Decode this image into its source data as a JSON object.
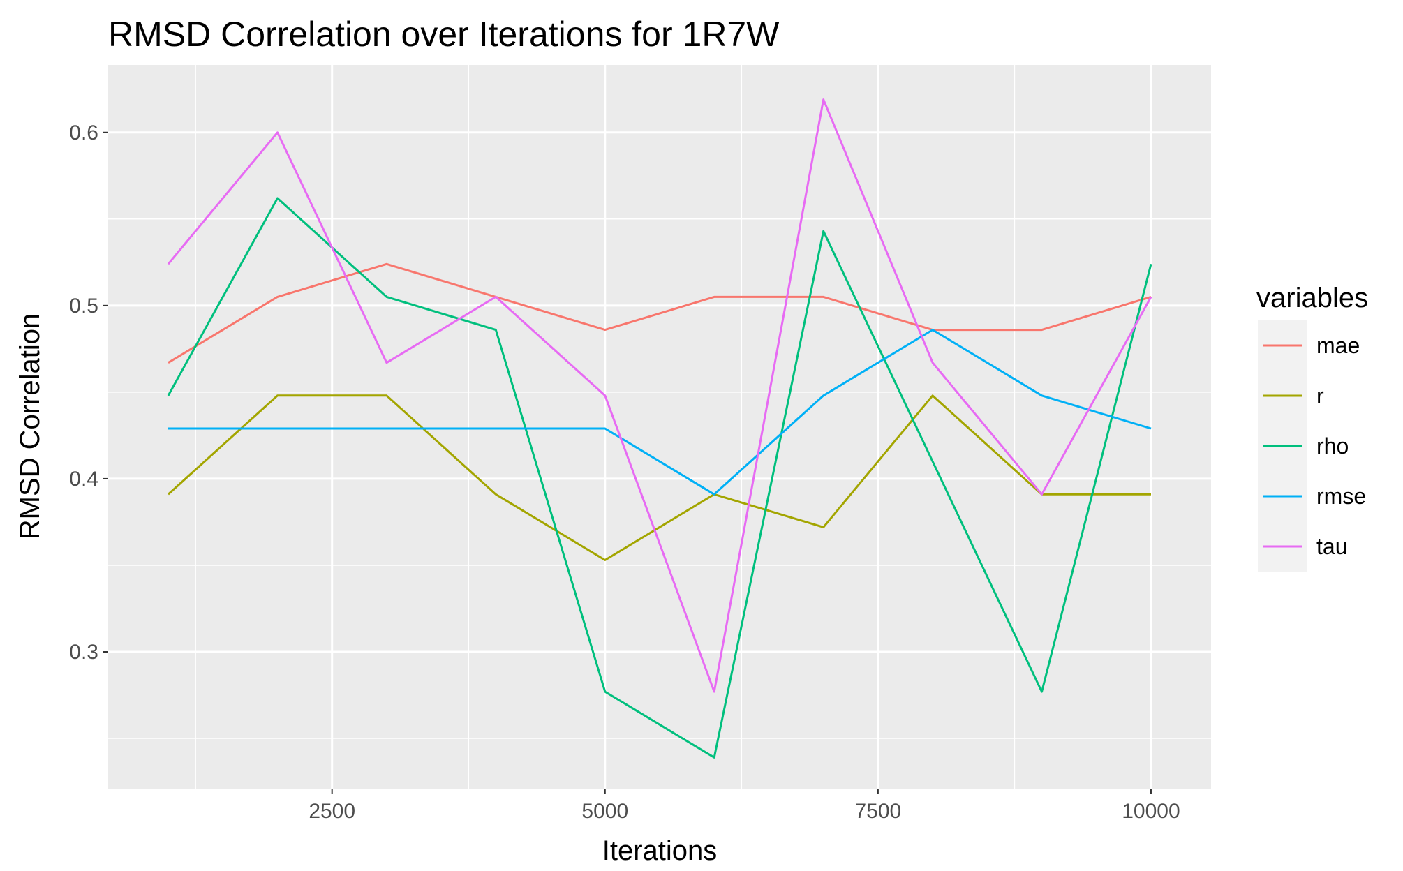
{
  "chart_data": {
    "type": "line",
    "title": "RMSD Correlation over Iterations for 1R7W",
    "xlabel": "Iterations",
    "ylabel": "RMSD Correlation",
    "xlim": [
      450,
      10550
    ],
    "ylim": [
      0.221,
      0.639
    ],
    "x_ticks": [
      2500,
      5000,
      7500,
      10000
    ],
    "x_tick_labels": [
      "2500",
      "5000",
      "7500",
      "10000"
    ],
    "y_ticks": [
      0.3,
      0.4,
      0.5,
      0.6
    ],
    "y_tick_labels": [
      "0.3",
      "0.4",
      "0.5",
      "0.6"
    ],
    "grid": true,
    "background": "#ebebeb",
    "legend": {
      "title": "variables",
      "position": "right"
    },
    "x": [
      1000,
      2000,
      3000,
      4000,
      5000,
      6000,
      7000,
      8000,
      9000,
      10000
    ],
    "series": [
      {
        "name": "mae",
        "color": "#F8766D",
        "values": [
          0.467,
          0.505,
          0.524,
          0.505,
          0.486,
          0.505,
          0.505,
          0.486,
          0.486,
          0.505
        ]
      },
      {
        "name": "r",
        "color": "#A3A500",
        "values": [
          0.391,
          0.448,
          0.448,
          0.391,
          0.353,
          0.391,
          0.372,
          0.448,
          0.391,
          0.391
        ]
      },
      {
        "name": "rho",
        "color": "#00BF7D",
        "values": [
          0.448,
          0.562,
          0.505,
          0.486,
          0.277,
          0.239,
          0.543,
          0.41,
          0.277,
          0.524
        ]
      },
      {
        "name": "rmse",
        "color": "#00B0F6",
        "values": [
          0.429,
          0.429,
          0.429,
          0.429,
          0.429,
          0.391,
          0.448,
          0.486,
          0.448,
          0.429
        ]
      },
      {
        "name": "tau",
        "color": "#E76BF3",
        "values": [
          0.524,
          0.6,
          0.467,
          0.505,
          0.448,
          0.277,
          0.619,
          0.467,
          0.391,
          0.505
        ]
      }
    ]
  }
}
